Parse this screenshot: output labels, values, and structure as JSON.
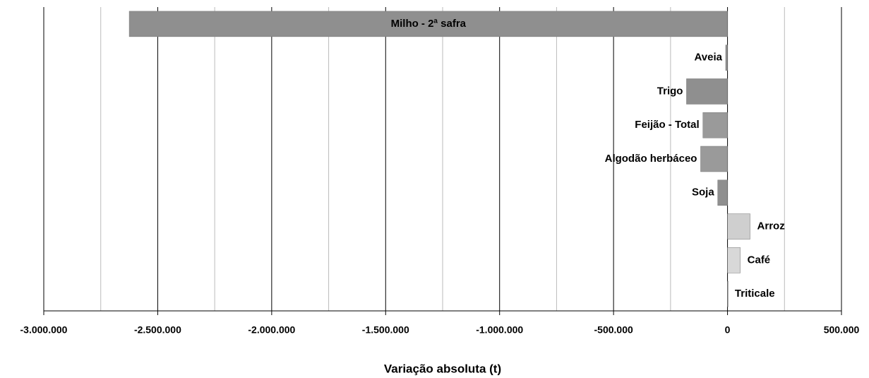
{
  "chart_data": {
    "type": "hbar",
    "xlabel": "Variação absoluta (t)",
    "categories": [
      "Milho - 2ª safra",
      "Aveia",
      "Trigo",
      "Feijão - Total",
      "Algodão herbáceo",
      "Soja",
      "Arroz",
      "Café",
      "Triticale"
    ],
    "values": [
      -2625000,
      -8000,
      -180000,
      -108000,
      -118000,
      -43000,
      99000,
      56000,
      1000
    ],
    "colors": [
      "#8f8f8f",
      "#8f8f8f",
      "#8f8f8f",
      "#9a9a9a",
      "#9a9a9a",
      "#8f8f8f",
      "#cfcfcf",
      "#d8d8d8",
      "#d8d8d8"
    ],
    "xlim": [
      -3000000,
      500000
    ],
    "xticks": [
      {
        "value": -3000000,
        "label": "-3.000.000"
      },
      {
        "value": -2500000,
        "label": "-2.500.000"
      },
      {
        "value": -2000000,
        "label": "-2.000.000"
      },
      {
        "value": -1500000,
        "label": "-1.500.000"
      },
      {
        "value": -1000000,
        "label": "-1.000.000"
      },
      {
        "value": -500000,
        "label": "-500.000"
      },
      0,
      {
        "value": 500000,
        "label": "500.000"
      }
    ],
    "minor_grid": [
      -2750000,
      -2250000,
      -1750000,
      -1250000,
      -750000,
      -250000,
      250000
    ],
    "grid": true
  }
}
